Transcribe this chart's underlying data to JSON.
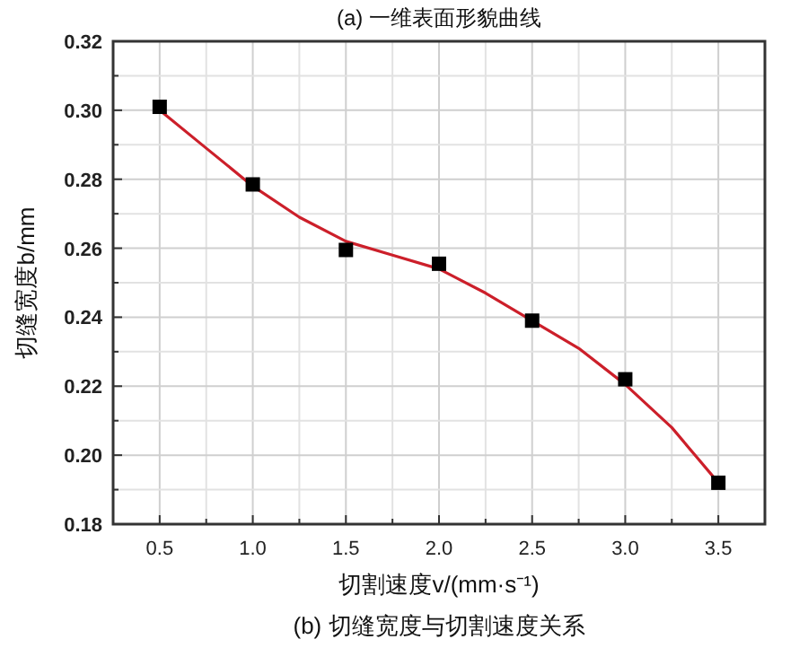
{
  "chart_data": {
    "type": "scatter",
    "xlabel": "切割速度v/(mm·s⁻¹)",
    "ylabel": "切缝宽度b/mm",
    "annotations": [
      "(a) 一维表面形貌曲线",
      "(b) 切缝宽度与切割速度关系"
    ],
    "xlim": [
      0.25,
      3.75
    ],
    "xticks": [
      {
        "value": 0.25,
        "label": null
      },
      0.5,
      {
        "value": 0.75,
        "label": null
      },
      "1.0",
      {
        "value": 1.25,
        "label": null
      },
      1.5,
      {
        "value": 1.75,
        "label": null
      },
      "2.0",
      {
        "value": 2.25,
        "label": null
      },
      2.5,
      {
        "value": 2.75,
        "label": null
      },
      "3.0",
      {
        "value": 3.25,
        "label": null
      },
      3.5,
      {
        "value": 3.75,
        "label": null
      }
    ],
    "ylim": [
      0.18,
      0.32
    ],
    "yticks": [
      0.18,
      {
        "value": 0.19,
        "label": null
      },
      "0.20",
      {
        "value": 0.21,
        "label": null
      },
      0.22,
      {
        "value": 0.23,
        "label": null
      },
      0.24,
      {
        "value": 0.25,
        "label": null
      },
      0.26,
      {
        "value": 0.27,
        "label": null
      },
      0.28,
      {
        "value": 0.29,
        "label": null
      },
      "0.30",
      {
        "value": 0.31,
        "label": null
      },
      0.32
    ],
    "grid": true,
    "series": [
      {
        "type": "line",
        "color": "#cc1f2a",
        "marker": "none",
        "line_style": "solid",
        "x": [
          0.5,
          0.75,
          1.0,
          1.25,
          1.5,
          1.75,
          2.0,
          2.25,
          2.5,
          2.75,
          3.0,
          3.25,
          3.5
        ],
        "values": [
          0.3,
          0.289,
          0.278,
          0.269,
          0.262,
          0.258,
          0.254,
          0.247,
          0.239,
          0.231,
          0.2205,
          0.208,
          0.192
        ]
      },
      {
        "type": "scatter",
        "color": "#000000",
        "marker": "square",
        "x": [
          0.5,
          1.0,
          1.5,
          2.0,
          2.5,
          3.0,
          3.5
        ],
        "values": [
          0.301,
          0.2785,
          0.2595,
          0.2555,
          0.239,
          0.222,
          0.192
        ]
      }
    ]
  }
}
